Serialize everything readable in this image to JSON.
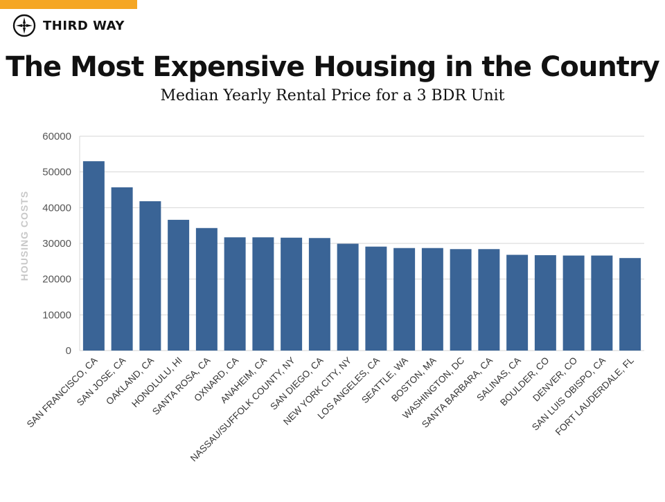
{
  "header": {
    "logo_text": "THIRD WAY",
    "logo_icon": "compass-icon",
    "accent_color": "#f5a623"
  },
  "chart_data": {
    "type": "bar",
    "title": "The Most Expensive Housing in the Country",
    "subtitle": "Median Yearly Rental Price for a 3 BDR Unit",
    "xlabel": "",
    "ylabel": "HOUSING COSTS",
    "ylim": [
      0,
      60000
    ],
    "yticks": [
      "0",
      "10000",
      "20000",
      "30000",
      "40000",
      "50000",
      "60000"
    ],
    "grid": true,
    "legend": "none",
    "bar_color": "#3a6496",
    "categories": [
      "SAN FRANCISCO, CA",
      "SAN JOSE, CA",
      "OAKLAND, CA",
      "HONOLULU, HI",
      "SANTA ROSA, CA",
      "OXNARD, CA",
      "ANAHEIM, CA",
      "NASSAU/SUFFOLK COUNTY, NY",
      "SAN DIEGO, CA",
      "NEW YORK CITY, NY",
      "LOS ANGELES, CA",
      "SEATTLE, WA",
      "BOSTON, MA",
      "WASHINGTON, DC",
      "SANTA BARBARA, CA",
      "SALINAS, CA",
      "BOULDER, CO",
      "DENVER, CO",
      "SAN LUIS OBISPO, CA",
      "FORT LAUDERDALE, FL"
    ],
    "values": [
      53000,
      45700,
      41800,
      36600,
      34300,
      31700,
      31700,
      31600,
      31500,
      29900,
      29100,
      28700,
      28700,
      28400,
      28400,
      26800,
      26700,
      26600,
      26600,
      25900
    ]
  }
}
